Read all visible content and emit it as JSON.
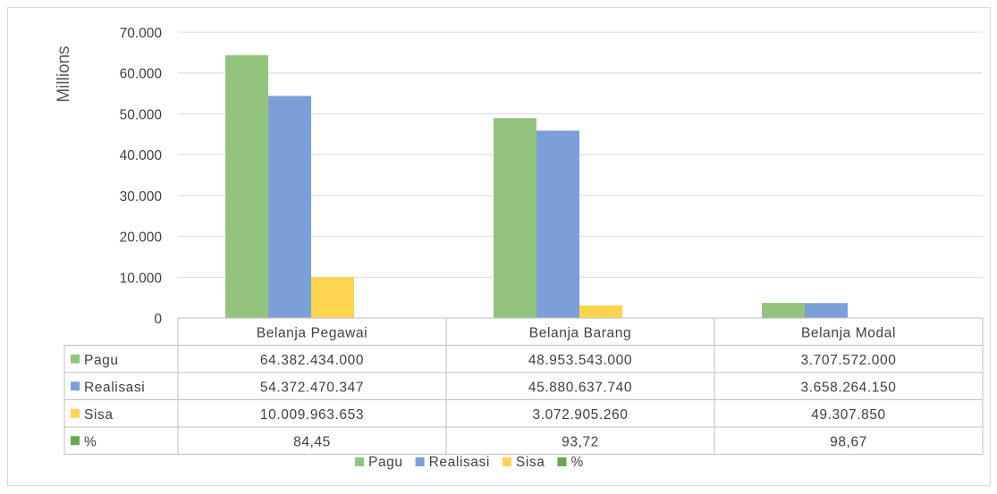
{
  "chart_data": {
    "type": "bar",
    "ylabel": "Millions",
    "ylim": [
      0,
      70000
    ],
    "yticks": [
      0,
      10000,
      20000,
      30000,
      40000,
      50000,
      60000,
      70000
    ],
    "ytick_labels": [
      "0",
      "10.000",
      "20.000",
      "30.000",
      "40.000",
      "50.000",
      "60.000",
      "70.000"
    ],
    "grid": true,
    "legend_position": "bottom",
    "categories": [
      "Belanja Pegawai",
      "Belanja Barang",
      "Belanja Modal"
    ],
    "series": [
      {
        "name": "Pagu",
        "color": "#93c47d",
        "values": [
          64382.434,
          48953.543,
          3707.572
        ],
        "table_labels": [
          "64.382.434.000",
          "48.953.543.000",
          "3.707.572.000"
        ]
      },
      {
        "name": "Realisasi",
        "color": "#7b9fd8",
        "values": [
          54372.470347,
          45880.63774,
          3658.26415
        ],
        "table_labels": [
          "54.372.470.347",
          "45.880.637.740",
          "3.658.264.150"
        ]
      },
      {
        "name": "Sisa",
        "color": "#ffd54f",
        "values": [
          10009.963653,
          3072.90526,
          49.30785
        ],
        "table_labels": [
          "10.009.963.653",
          "3.072.905.260",
          "49.307.850"
        ]
      },
      {
        "name": "%",
        "color": "#6aa84f",
        "values": [
          0.08445,
          0.09372,
          0.09867
        ],
        "table_labels": [
          "84,45",
          "93,72",
          "98,67"
        ]
      }
    ]
  }
}
